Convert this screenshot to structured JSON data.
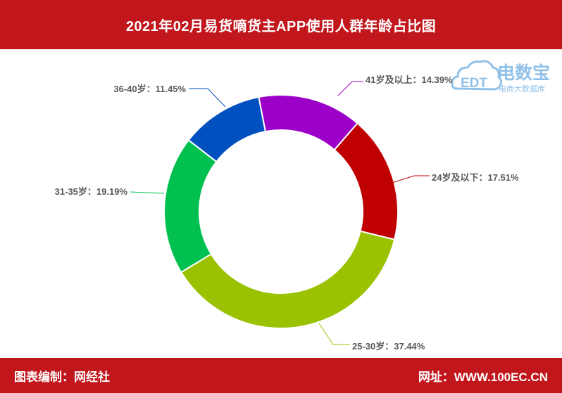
{
  "header": {
    "title": "2021年02月易货嘀货主APP使用人群年龄占比图"
  },
  "footer": {
    "left_text": "图表编制：网经社",
    "right_text": "网址：WWW.100EC.CN"
  },
  "logo": {
    "icon": "cloud-edt-logo",
    "mark": "EDT",
    "name": "电数宝",
    "tagline": "电商大数据库"
  },
  "colors": {
    "header_bg": "#c1161c",
    "footer_bg": "#c1161c"
  },
  "chart_data": {
    "type": "pie",
    "variant": "donut",
    "title": "2021年02月易货嘀货主APP使用人群年龄占比图",
    "slices": [
      {
        "label": "41岁及以上",
        "value": 14.39,
        "display": "41岁及以上：14.39%",
        "color": "#9c00c8"
      },
      {
        "label": "24岁及以下",
        "value": 17.51,
        "display": "24岁及以下：17.51%",
        "color": "#c00000"
      },
      {
        "label": "25-30岁",
        "value": 37.44,
        "display": "25-30岁：37.44%",
        "color": "#9bc200"
      },
      {
        "label": "31-35岁",
        "value": 19.19,
        "display": "31-35岁：19.19%",
        "color": "#00c050"
      },
      {
        "label": "36-40岁",
        "value": 11.45,
        "display": "36-40岁：11.45%",
        "color": "#0050c0"
      }
    ]
  }
}
